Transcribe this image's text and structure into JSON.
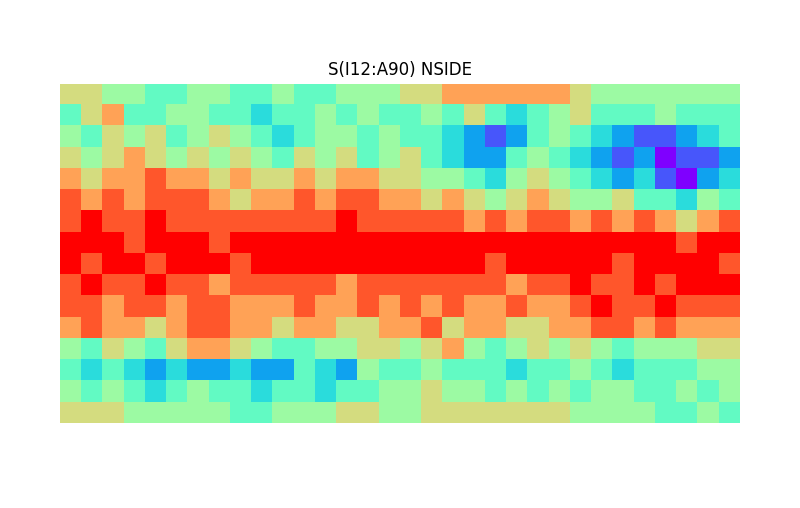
{
  "chart_data": {
    "type": "heatmap",
    "title": "S(I12:A90) NSIDE",
    "tick_labels": false,
    "color": "rainbow",
    "cells": [
      [
        7,
        7,
        6,
        6,
        5,
        5,
        6,
        6,
        5,
        5,
        6,
        5,
        5,
        6,
        6,
        6,
        7,
        7,
        8,
        8,
        8,
        8,
        8,
        8,
        7,
        6,
        6,
        6,
        6,
        6,
        6,
        6
      ],
      [
        5,
        7,
        8,
        5,
        5,
        6,
        6,
        5,
        5,
        4,
        5,
        5,
        6,
        5,
        6,
        5,
        5,
        6,
        5,
        7,
        5,
        4,
        5,
        6,
        7,
        5,
        5,
        5,
        6,
        5,
        5,
        5
      ],
      [
        6,
        5,
        7,
        6,
        7,
        5,
        6,
        7,
        6,
        5,
        4,
        5,
        6,
        6,
        5,
        6,
        5,
        5,
        4,
        3,
        2,
        3,
        5,
        6,
        5,
        4,
        3,
        2,
        2,
        3,
        4,
        5
      ],
      [
        7,
        6,
        7,
        8,
        7,
        6,
        7,
        6,
        7,
        6,
        5,
        7,
        6,
        7,
        5,
        6,
        7,
        5,
        4,
        3,
        3,
        5,
        6,
        5,
        4,
        3,
        2,
        3,
        1,
        2,
        2,
        3
      ],
      [
        8,
        7,
        8,
        8,
        9,
        8,
        8,
        7,
        8,
        7,
        7,
        8,
        7,
        8,
        8,
        7,
        7,
        6,
        6,
        5,
        4,
        6,
        7,
        6,
        5,
        4,
        3,
        4,
        2,
        1,
        3,
        4
      ],
      [
        9,
        8,
        9,
        8,
        9,
        9,
        9,
        8,
        7,
        8,
        8,
        9,
        8,
        9,
        9,
        8,
        8,
        7,
        8,
        7,
        6,
        7,
        8,
        7,
        6,
        6,
        7,
        5,
        5,
        4,
        6,
        5
      ],
      [
        9,
        10,
        9,
        9,
        10,
        9,
        9,
        9,
        9,
        9,
        9,
        9,
        9,
        10,
        9,
        9,
        9,
        9,
        9,
        8,
        9,
        8,
        9,
        9,
        8,
        9,
        8,
        9,
        8,
        7,
        8,
        9
      ],
      [
        10,
        10,
        10,
        9,
        10,
        10,
        10,
        9,
        10,
        10,
        10,
        10,
        10,
        10,
        10,
        10,
        10,
        10,
        10,
        10,
        10,
        10,
        10,
        10,
        10,
        10,
        10,
        10,
        10,
        9,
        10,
        10
      ],
      [
        10,
        9,
        10,
        10,
        9,
        10,
        10,
        10,
        9,
        10,
        10,
        10,
        10,
        10,
        10,
        10,
        10,
        10,
        10,
        10,
        9,
        10,
        10,
        10,
        10,
        10,
        9,
        10,
        10,
        10,
        10,
        9
      ],
      [
        9,
        10,
        9,
        9,
        10,
        9,
        9,
        8,
        9,
        9,
        9,
        9,
        9,
        8,
        9,
        9,
        9,
        9,
        9,
        9,
        9,
        8,
        9,
        9,
        10,
        9,
        9,
        10,
        9,
        10,
        10,
        10
      ],
      [
        9,
        9,
        8,
        9,
        9,
        8,
        9,
        9,
        8,
        8,
        8,
        9,
        8,
        8,
        9,
        8,
        9,
        8,
        9,
        8,
        8,
        9,
        8,
        8,
        9,
        10,
        9,
        9,
        10,
        9,
        9,
        9
      ],
      [
        8,
        9,
        8,
        8,
        7,
        8,
        9,
        9,
        8,
        8,
        7,
        8,
        8,
        7,
        7,
        8,
        8,
        9,
        7,
        8,
        8,
        7,
        7,
        8,
        8,
        9,
        9,
        8,
        9,
        8,
        8,
        8
      ],
      [
        6,
        5,
        7,
        6,
        5,
        7,
        8,
        8,
        7,
        6,
        5,
        5,
        6,
        6,
        7,
        7,
        6,
        7,
        8,
        6,
        5,
        6,
        7,
        6,
        7,
        6,
        5,
        6,
        6,
        6,
        7,
        7
      ],
      [
        5,
        4,
        5,
        4,
        3,
        4,
        3,
        3,
        4,
        3,
        3,
        5,
        4,
        3,
        6,
        5,
        5,
        6,
        5,
        5,
        5,
        4,
        5,
        5,
        6,
        5,
        4,
        5,
        5,
        5,
        6,
        6
      ],
      [
        6,
        5,
        6,
        5,
        4,
        5,
        6,
        5,
        5,
        4,
        5,
        5,
        4,
        5,
        5,
        6,
        6,
        7,
        6,
        6,
        5,
        6,
        5,
        6,
        5,
        6,
        6,
        5,
        5,
        6,
        5,
        6
      ],
      [
        7,
        7,
        7,
        6,
        6,
        6,
        6,
        6,
        5,
        5,
        6,
        6,
        6,
        7,
        7,
        6,
        6,
        7,
        7,
        7,
        7,
        7,
        7,
        7,
        6,
        6,
        6,
        6,
        5,
        5,
        6,
        5
      ]
    ]
  }
}
